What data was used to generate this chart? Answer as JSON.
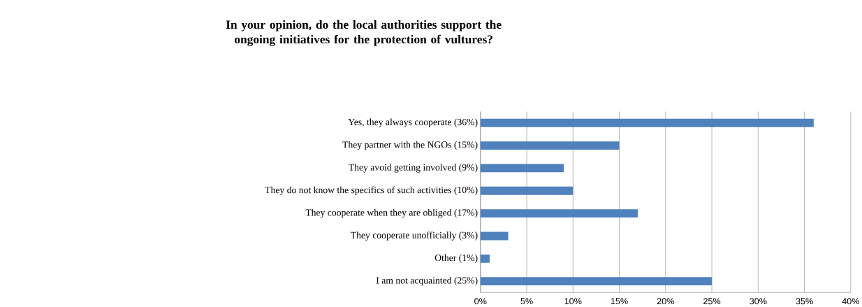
{
  "chart_data": {
    "type": "bar",
    "orientation": "horizontal",
    "title": "In your opinion, do the local authorities support the ongoing initiatives for the protection of vultures?",
    "categories": [
      "Yes, they always cooperate (36%)",
      "They partner with the NGOs (15%)",
      "They avoid getting involved (9%)",
      "They do not know the specifics of such activities (10%)",
      "They cooperate when they are obliged (17%)",
      "They cooperate unofficially (3%)",
      "Other (1%)",
      "I am not acquainted (25%)"
    ],
    "values": [
      36,
      15,
      9,
      10,
      17,
      3,
      1,
      25
    ],
    "color": "#4f81bd",
    "xlim": [
      0,
      40
    ],
    "xticks": [
      {
        "value": 0,
        "label": "0%"
      },
      {
        "value": 5,
        "label": "5%"
      },
      {
        "value": 10,
        "label": "10%"
      },
      {
        "value": 15,
        "label": "15%"
      },
      {
        "value": 20,
        "label": "20%"
      },
      {
        "value": 25,
        "label": "25%"
      },
      {
        "value": 30,
        "label": "30%"
      },
      {
        "value": 35,
        "label": "35%"
      },
      {
        "value": 40,
        "label": "40%"
      }
    ],
    "grid": "x"
  }
}
